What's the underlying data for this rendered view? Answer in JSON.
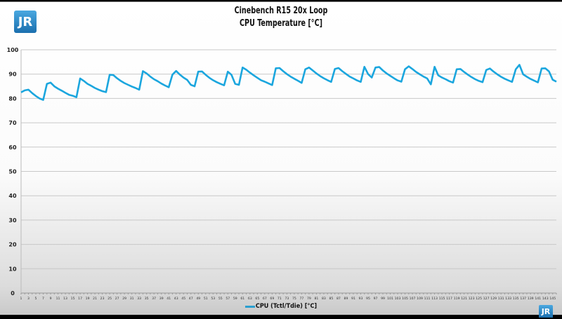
{
  "header": {
    "title": "Cinebench R15 20x Loop",
    "subtitle": "CPU Temperature [°C]",
    "logo_text": "JR"
  },
  "chart_data": {
    "type": "line",
    "title": "Cinebench R15 20x Loop",
    "subtitle": "CPU Temperature [°C]",
    "xlabel": "",
    "ylabel": "",
    "ylim": [
      0,
      100
    ],
    "yticks": [
      0,
      10,
      20,
      30,
      40,
      50,
      60,
      70,
      80,
      90,
      100
    ],
    "xlim": [
      1,
      146
    ],
    "xtick_step": 2,
    "grid": true,
    "legend": "bottom",
    "series": [
      {
        "name": "CPU (Tctl/Tdie) [°C]",
        "color": "#1ba6de",
        "values": [
          82.5,
          83.3,
          83.6,
          82.2,
          81,
          80,
          79.4,
          86,
          86.5,
          85,
          84,
          83.2,
          82.3,
          81.5,
          81.1,
          80.5,
          88.2,
          87.2,
          86,
          85.2,
          84.3,
          83.6,
          83,
          82.6,
          89.7,
          89.6,
          88.3,
          87.2,
          86.3,
          85.6,
          84.9,
          84.3,
          83.6,
          91.2,
          90.3,
          89,
          87.9,
          87.1,
          86.1,
          85.3,
          84.6,
          89.8,
          91.3,
          89.8,
          88.6,
          87.6,
          85.6,
          85,
          91,
          91.1,
          89.7,
          88.5,
          87.5,
          86.7,
          86,
          85.4,
          91,
          89.7,
          86,
          85.6,
          92.7,
          91.8,
          90.6,
          89.5,
          88.5,
          87.5,
          86.9,
          86.2,
          85.5,
          92.4,
          92.5,
          91.2,
          90,
          89,
          88.1,
          87.3,
          86.4,
          92,
          92.7,
          91.5,
          90.3,
          89.2,
          88.3,
          87.5,
          86.8,
          92.1,
          92.5,
          91.2,
          90.1,
          89,
          88.2,
          87.4,
          86.8,
          93,
          90,
          88.6,
          92.7,
          92.9,
          91.5,
          90.3,
          89.3,
          88.3,
          87.4,
          86.9,
          92,
          93.2,
          92.1,
          90.9,
          89.9,
          89,
          88.2,
          85.8,
          93,
          89.5,
          88.6,
          87.9,
          87.1,
          86.5,
          92,
          92.1,
          90.9,
          89.8,
          88.8,
          87.9,
          87.2,
          86.7,
          91.7,
          92.3,
          91,
          89.9,
          88.9,
          88.1,
          87.4,
          86.8,
          92,
          93.8,
          89.9,
          88.9,
          88,
          87.3,
          86.6,
          92.3,
          92.4,
          91.1,
          87.7,
          86.9
        ]
      }
    ]
  }
}
